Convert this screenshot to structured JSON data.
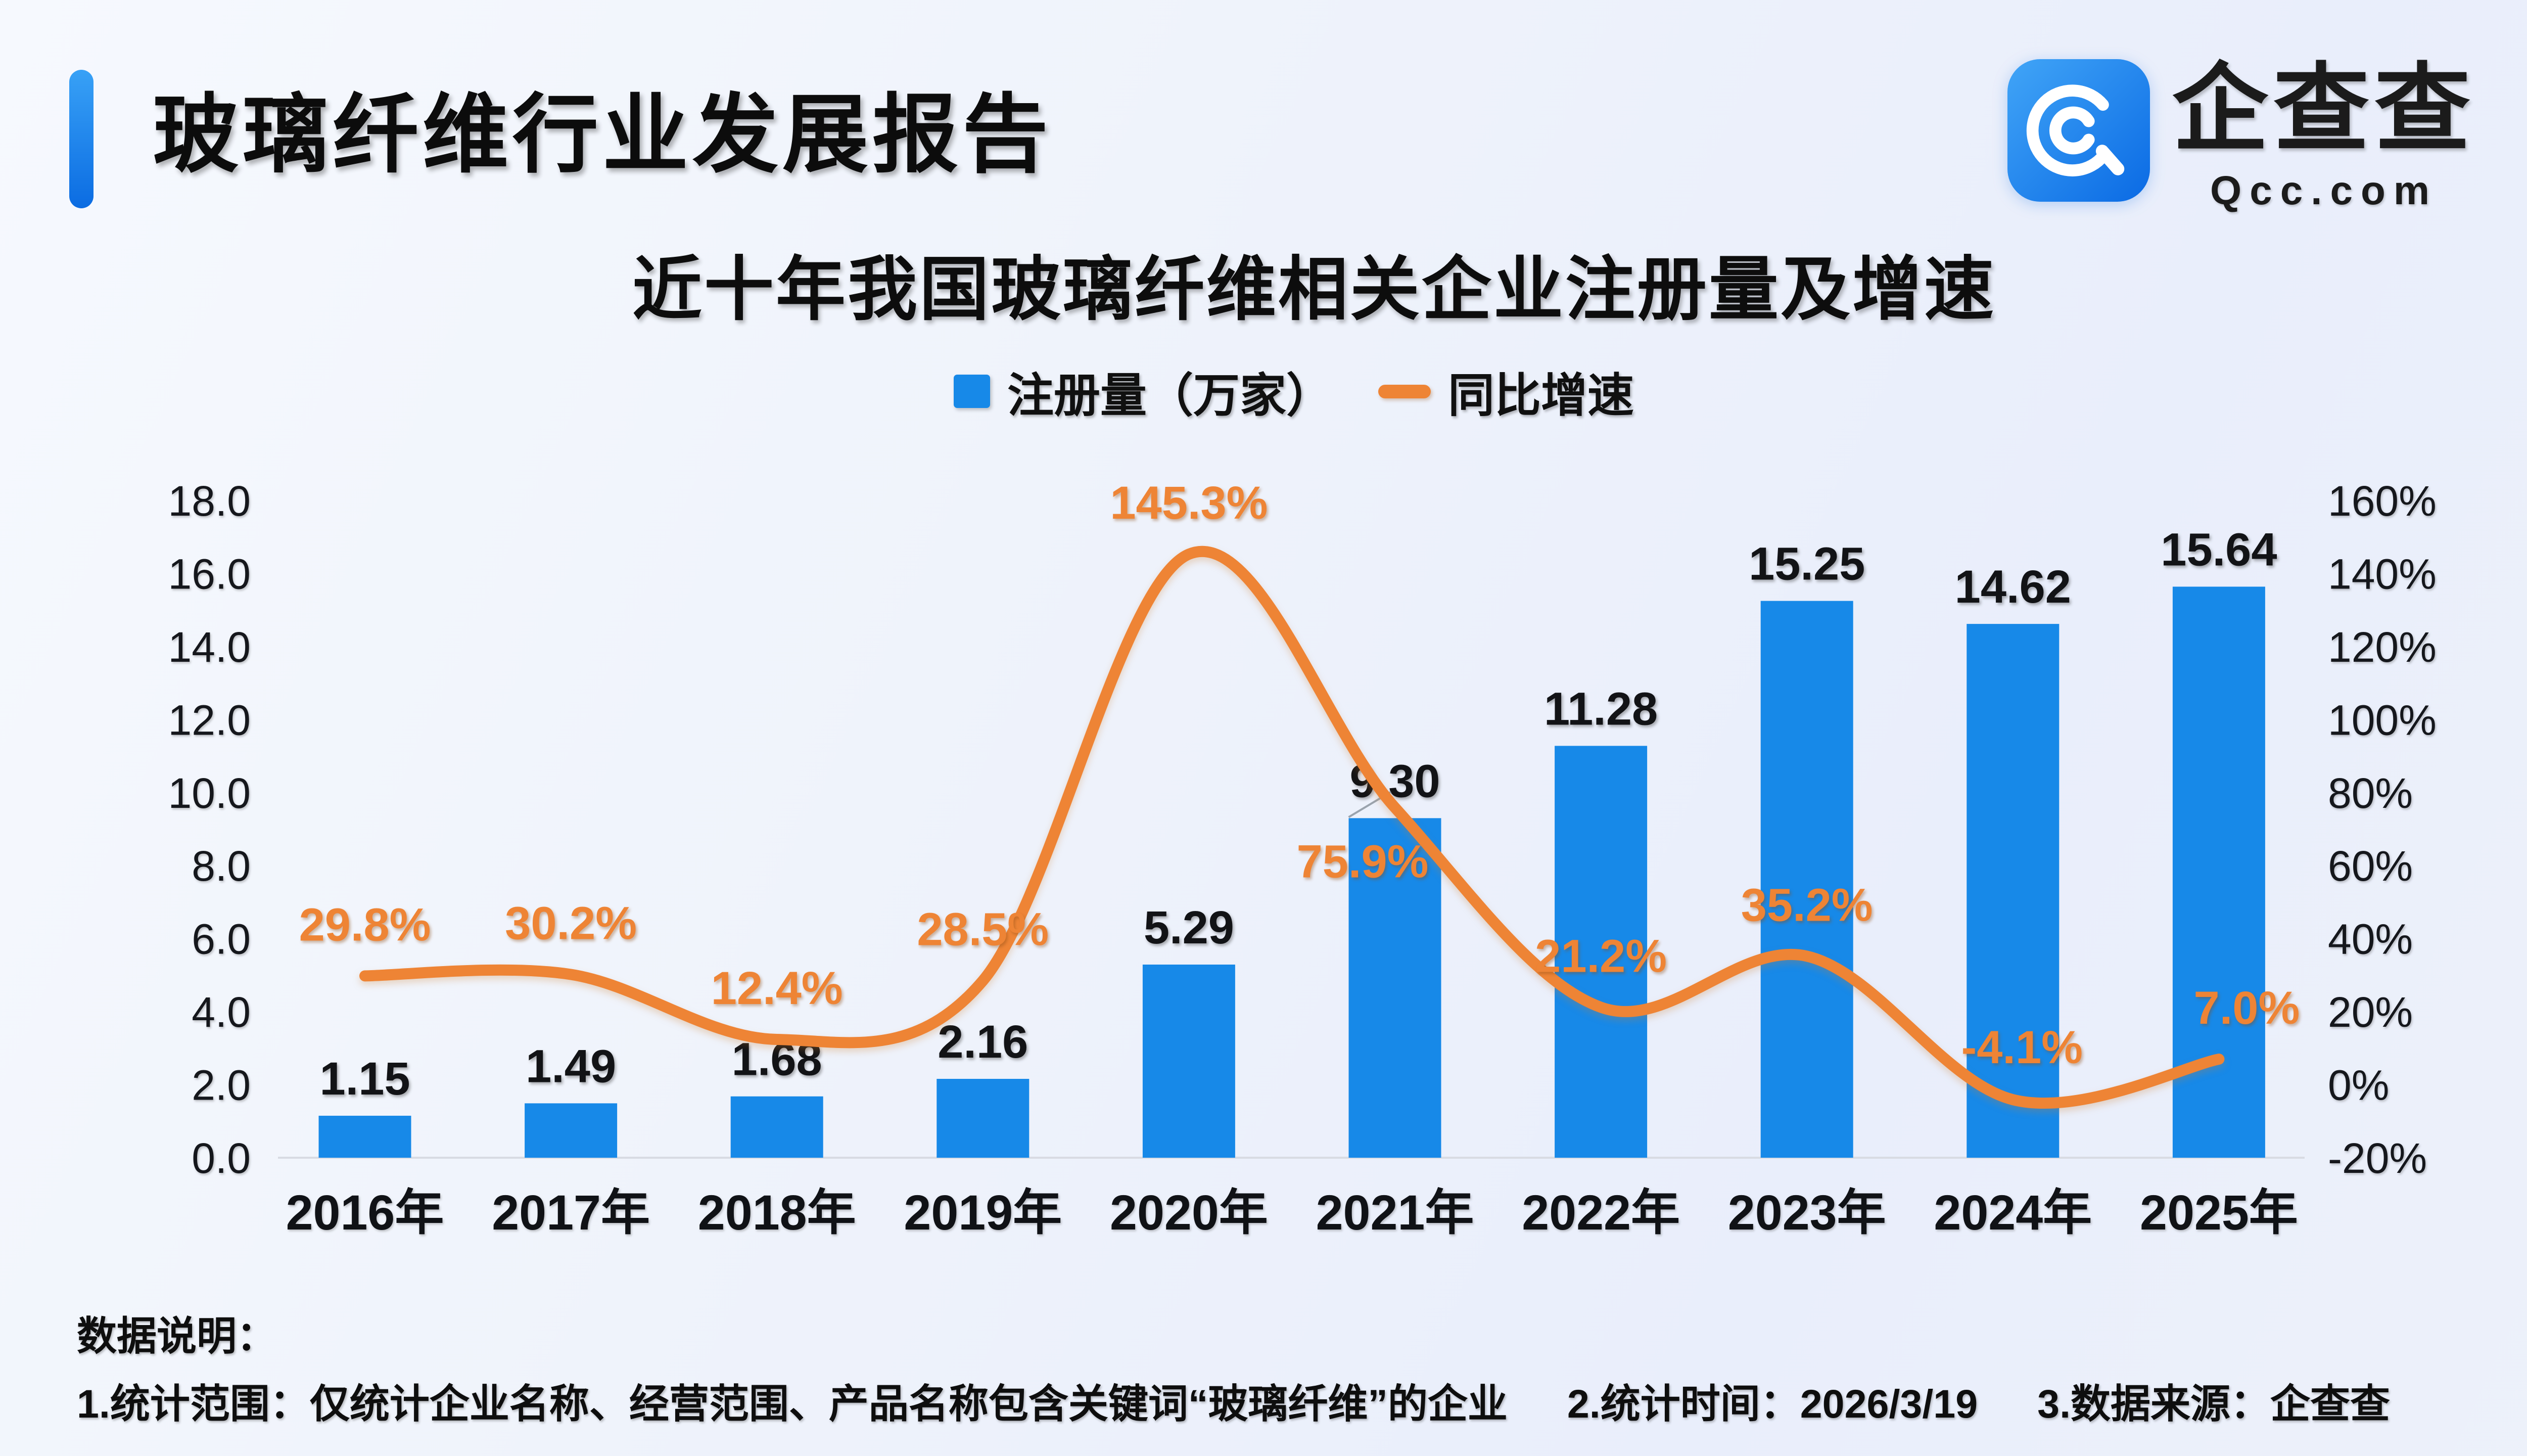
{
  "header": {
    "title": "玻璃纤维行业发展报告",
    "accent_gradient_top": "#38a1f6",
    "accent_gradient_bottom": "#0b6ce2"
  },
  "logo": {
    "name": "企查查",
    "domain": "Qcc.com",
    "brand_blue": "#1789E8"
  },
  "chart_data": {
    "type": "bar",
    "title": "近十年我国玻璃纤维相关企业注册量及增速",
    "categories": [
      "2016年",
      "2017年",
      "2018年",
      "2019年",
      "2020年",
      "2021年",
      "2022年",
      "2023年",
      "2024年",
      "2025年"
    ],
    "series": [
      {
        "name": "注册量（万家）",
        "type": "bar",
        "axis": "left",
        "color": "#1789E8",
        "values": [
          1.15,
          1.49,
          1.68,
          2.16,
          5.29,
          9.3,
          11.28,
          15.25,
          14.62,
          15.64
        ],
        "labels": [
          "1.15",
          "1.49",
          "1.68",
          "2.16",
          "5.29",
          "9.30",
          "11.28",
          "15.25",
          "14.62",
          "15.64"
        ]
      },
      {
        "name": "同比增速",
        "type": "line",
        "axis": "right",
        "color": "#EE8435",
        "values": [
          29.8,
          30.2,
          12.4,
          28.5,
          145.3,
          75.9,
          21.2,
          35.2,
          -4.1,
          7.0
        ],
        "labels": [
          "29.8%",
          "30.2%",
          "12.4%",
          "28.5%",
          "145.3%",
          "75.9%",
          "21.2%",
          "35.2%",
          "-4.1%",
          "7.0%"
        ]
      }
    ],
    "left_axis": {
      "min": 0,
      "max": 18,
      "step": 2,
      "ticks": [
        "18.0",
        "16.0",
        "14.0",
        "12.0",
        "10.0",
        "8.0",
        "6.0",
        "4.0",
        "2.0",
        "0.0"
      ]
    },
    "right_axis": {
      "min": -20,
      "max": 160,
      "step": 20,
      "ticks": [
        "160%",
        "140%",
        "120%",
        "100%",
        "80%",
        "60%",
        "40%",
        "20%",
        "0%",
        "-20%"
      ]
    },
    "grid": false,
    "legend_position": "top-center",
    "baseline_color": "#d8dbe3"
  },
  "footer": {
    "heading": "数据说明：",
    "notes": [
      "1.统计范围：仅统计企业名称、经营范围、产品名称包含关键词“玻璃纤维”的企业",
      "2.统计时间：2026/3/19",
      "3.数据来源：企查查"
    ]
  }
}
